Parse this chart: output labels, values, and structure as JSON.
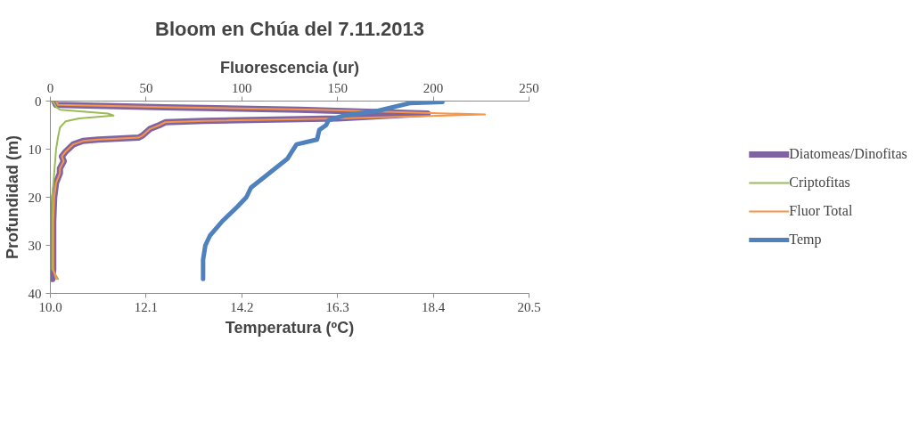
{
  "chart_data": {
    "type": "line",
    "title": "Bloom en Chúa del 7.11.2013",
    "xlabel": "Temperatura (ºC)",
    "x2label": "Fluorescencia (ur)",
    "ylabel": "Profundidad (m)",
    "xlim": [
      10.0,
      20.5
    ],
    "xticks": [
      {
        "value": 10.0,
        "label": "10.0"
      },
      {
        "value": 12.1,
        "label": "12.1"
      },
      {
        "value": 14.2,
        "label": "14.2"
      },
      {
        "value": 16.3,
        "label": "16.3"
      },
      {
        "value": 18.4,
        "label": "18.4"
      },
      {
        "value": 20.5,
        "label": "20.5"
      }
    ],
    "x2lim": [
      0,
      250
    ],
    "x2ticks": [
      0,
      50,
      100,
      150,
      200,
      250
    ],
    "ylim": [
      40,
      0
    ],
    "yticks": [
      0,
      10,
      20,
      30,
      40
    ],
    "grid": false,
    "legend": "right",
    "series": [
      {
        "name": "Diatomeas/Dinofitas",
        "color": "#8064a2",
        "axis": "x2",
        "x": [
          2,
          3,
          60,
          130,
          197,
          150,
          80,
          60,
          57,
          52,
          48,
          46,
          25,
          17,
          12,
          8,
          6,
          7,
          5,
          5,
          3,
          2,
          1.5,
          1.5,
          1.5,
          1
        ],
        "values": [
          0,
          0.8,
          1.3,
          1.8,
          2.6,
          3.6,
          4.1,
          4.4,
          5,
          5.8,
          7.2,
          7.6,
          8,
          8.3,
          9,
          10.5,
          11.5,
          12.5,
          14,
          15,
          17,
          20,
          25,
          30,
          35,
          37
        ]
      },
      {
        "name": "Criptofitas",
        "color": "#9bbb59",
        "axis": "x2",
        "x": [
          1,
          2,
          3,
          5,
          30,
          33,
          15,
          8,
          5,
          4,
          3,
          2,
          1,
          1,
          1,
          1,
          4
        ],
        "values": [
          0,
          0.5,
          1.2,
          1.8,
          2.6,
          3,
          3.6,
          4.2,
          5.5,
          7.5,
          10,
          15,
          20,
          25,
          30,
          35,
          37
        ]
      },
      {
        "name": "Fluor Total",
        "color": "#f79646",
        "axis": "x2",
        "x": [
          3,
          4,
          65,
          140,
          227,
          150,
          80,
          60,
          57,
          52,
          48,
          46,
          25,
          17,
          12,
          8,
          6,
          7,
          5,
          5,
          3,
          2,
          1.5,
          1.5,
          1.5,
          3
        ],
        "values": [
          0,
          0.8,
          1.3,
          1.8,
          2.8,
          3.6,
          4.1,
          4.4,
          5,
          5.8,
          7.2,
          7.6,
          8,
          8.3,
          9,
          10.5,
          11.5,
          12.5,
          14,
          15,
          17,
          20,
          25,
          30,
          35,
          37
        ]
      },
      {
        "name": "Temp",
        "color": "#4f81bd",
        "x": [
          18.6,
          17.9,
          17.2,
          16.45,
          16.1,
          16.05,
          15.9,
          15.85,
          15.4,
          15.3,
          15.2,
          14.8,
          14.4,
          14.3,
          14.1,
          13.77,
          13.5,
          13.4,
          13.35,
          13.35,
          13.35
        ],
        "values": [
          0.2,
          0.4,
          2,
          3,
          4,
          5,
          6,
          8,
          9,
          10.5,
          12,
          15,
          18,
          20,
          22,
          25,
          28,
          30,
          33,
          36,
          37
        ]
      }
    ]
  }
}
